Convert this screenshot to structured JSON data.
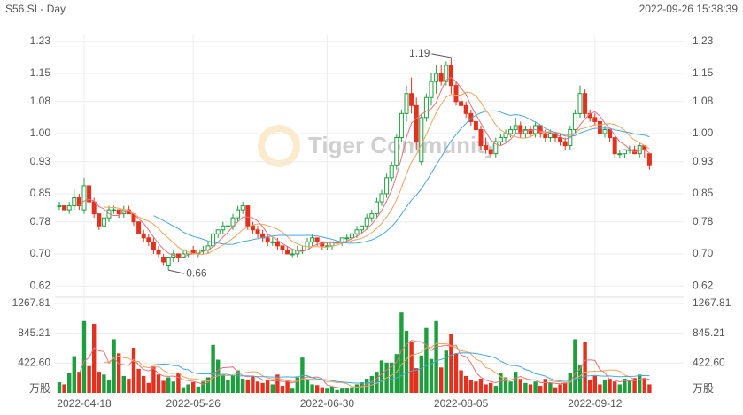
{
  "chart_data": {
    "type": "candlestick",
    "title": "S56.SI - Day",
    "timestamp": "2022-09-26 15:38:39",
    "watermark": "Tiger Community",
    "volume_unit": "万股",
    "up_color": "#1f9e3e",
    "down_color": "#e2321f",
    "categories": [
      null,
      null,
      null,
      null,
      null,
      "2022-04-18",
      null,
      null,
      null,
      null,
      null,
      null,
      null,
      null,
      null,
      null,
      null,
      null,
      null,
      null,
      null,
      null,
      null,
      null,
      null,
      null,
      null,
      "2022-05-26",
      null,
      null,
      null,
      null,
      null,
      null,
      null,
      null,
      null,
      null,
      null,
      null,
      null,
      null,
      null,
      null,
      null,
      null,
      null,
      null,
      null,
      null,
      null,
      null,
      null,
      null,
      "2022-06-30",
      null,
      null,
      null,
      null,
      null,
      null,
      null,
      null,
      null,
      null,
      null,
      null,
      null,
      null,
      null,
      null,
      null,
      null,
      null,
      null,
      null,
      null,
      null,
      null,
      null,
      null,
      "2022-08-05",
      null,
      null,
      null,
      null,
      null,
      null,
      null,
      null,
      null,
      null,
      null,
      null,
      null,
      null,
      null,
      null,
      null,
      null,
      null,
      null,
      null,
      null,
      null,
      null,
      null,
      null,
      "2022-09-12",
      null,
      null,
      null,
      null,
      null,
      null,
      null,
      null,
      null,
      null,
      null
    ],
    "open": [
      0.82,
      0.82,
      0.81,
      0.82,
      0.84,
      0.81,
      0.87,
      0.83,
      0.8,
      0.77,
      0.79,
      0.81,
      0.81,
      0.8,
      0.81,
      0.8,
      0.78,
      0.75,
      0.74,
      0.73,
      0.71,
      0.69,
      0.67,
      0.69,
      0.7,
      0.69,
      0.7,
      0.71,
      0.7,
      0.71,
      0.71,
      0.72,
      0.75,
      0.76,
      0.77,
      0.77,
      0.79,
      0.81,
      0.82,
      0.77,
      0.76,
      0.75,
      0.74,
      0.73,
      0.73,
      0.72,
      0.71,
      0.7,
      0.7,
      0.71,
      0.71,
      0.73,
      0.74,
      0.73,
      0.72,
      0.72,
      0.73,
      0.73,
      0.74,
      0.74,
      0.75,
      0.76,
      0.77,
      0.79,
      0.8,
      0.83,
      0.85,
      0.89,
      0.92,
      0.99,
      1.05,
      1.1,
      1.07,
      0.93,
      1.04,
      1.09,
      1.13,
      1.15,
      1.13,
      1.17,
      1.12,
      1.08,
      1.07,
      1.05,
      1.03,
      1.01,
      0.97,
      0.96,
      0.95,
      0.98,
      0.99,
      1.0,
      1.01,
      1.02,
      1.0,
      1.01,
      1.0,
      1.02,
      1.0,
      0.99,
      1.0,
      0.99,
      0.98,
      0.97,
      1.01,
      1.05,
      1.1,
      1.05,
      1.04,
      1.03,
      1.0,
      1.01,
      0.99,
      0.95,
      0.95,
      0.96,
      0.96,
      0.95,
      0.97,
      0.95
    ],
    "high": [
      0.83,
      0.82,
      0.83,
      0.86,
      0.85,
      0.89,
      0.87,
      0.84,
      0.8,
      0.8,
      0.82,
      0.82,
      0.81,
      0.82,
      0.82,
      0.8,
      0.78,
      0.76,
      0.75,
      0.74,
      0.72,
      0.7,
      0.69,
      0.71,
      0.7,
      0.71,
      0.71,
      0.72,
      0.71,
      0.72,
      0.73,
      0.76,
      0.76,
      0.78,
      0.78,
      0.8,
      0.82,
      0.83,
      0.82,
      0.78,
      0.77,
      0.76,
      0.75,
      0.74,
      0.74,
      0.72,
      0.72,
      0.71,
      0.72,
      0.72,
      0.74,
      0.75,
      0.74,
      0.73,
      0.73,
      0.73,
      0.73,
      0.74,
      0.75,
      0.75,
      0.77,
      0.77,
      0.8,
      0.81,
      0.84,
      0.86,
      0.9,
      0.93,
      1.0,
      1.06,
      1.12,
      1.14,
      1.09,
      1.05,
      1.1,
      1.15,
      1.17,
      1.17,
      1.18,
      1.19,
      1.13,
      1.1,
      1.08,
      1.06,
      1.04,
      1.02,
      0.99,
      0.97,
      0.99,
      1.0,
      1.01,
      1.02,
      1.04,
      1.03,
      1.02,
      1.02,
      1.03,
      1.02,
      1.01,
      1.01,
      1.0,
      1.0,
      0.99,
      1.02,
      1.06,
      1.12,
      1.11,
      1.06,
      1.05,
      1.04,
      1.02,
      1.01,
      0.99,
      0.96,
      0.96,
      0.97,
      0.97,
      0.98,
      0.97,
      0.95
    ],
    "low": [
      0.81,
      0.81,
      0.8,
      0.81,
      0.81,
      0.8,
      0.82,
      0.79,
      0.76,
      0.77,
      0.78,
      0.8,
      0.79,
      0.79,
      0.8,
      0.77,
      0.75,
      0.73,
      0.72,
      0.7,
      0.69,
      0.67,
      0.66,
      0.68,
      0.68,
      0.69,
      0.69,
      0.7,
      0.69,
      0.7,
      0.7,
      0.72,
      0.74,
      0.75,
      0.76,
      0.76,
      0.78,
      0.8,
      0.76,
      0.75,
      0.74,
      0.73,
      0.72,
      0.72,
      0.71,
      0.7,
      0.7,
      0.69,
      0.69,
      0.7,
      0.71,
      0.72,
      0.72,
      0.71,
      0.71,
      0.71,
      0.72,
      0.72,
      0.73,
      0.73,
      0.74,
      0.75,
      0.76,
      0.78,
      0.79,
      0.82,
      0.84,
      0.88,
      0.91,
      0.98,
      1.03,
      1.05,
      0.96,
      0.92,
      1.03,
      1.07,
      1.1,
      1.12,
      1.12,
      1.1,
      1.07,
      1.06,
      1.04,
      1.02,
      1.0,
      0.96,
      0.95,
      0.94,
      0.94,
      0.97,
      0.98,
      0.99,
      1.0,
      0.99,
      0.99,
      0.99,
      0.99,
      0.99,
      0.98,
      0.98,
      0.98,
      0.97,
      0.96,
      0.96,
      1.0,
      1.04,
      1.04,
      1.03,
      1.02,
      0.99,
      0.99,
      0.98,
      0.94,
      0.94,
      0.94,
      0.95,
      0.95,
      0.94,
      0.94,
      0.91
    ],
    "close": [
      0.82,
      0.81,
      0.82,
      0.84,
      0.82,
      0.87,
      0.83,
      0.8,
      0.77,
      0.79,
      0.81,
      0.81,
      0.8,
      0.81,
      0.8,
      0.78,
      0.75,
      0.74,
      0.73,
      0.71,
      0.7,
      0.68,
      0.69,
      0.7,
      0.69,
      0.7,
      0.71,
      0.7,
      0.71,
      0.71,
      0.72,
      0.75,
      0.76,
      0.77,
      0.77,
      0.79,
      0.81,
      0.82,
      0.77,
      0.76,
      0.75,
      0.74,
      0.73,
      0.73,
      0.72,
      0.71,
      0.7,
      0.7,
      0.71,
      0.71,
      0.73,
      0.74,
      0.73,
      0.72,
      0.72,
      0.73,
      0.73,
      0.74,
      0.74,
      0.75,
      0.76,
      0.77,
      0.79,
      0.8,
      0.83,
      0.85,
      0.89,
      0.92,
      0.99,
      1.05,
      1.1,
      1.07,
      0.98,
      1.04,
      1.09,
      1.13,
      1.15,
      1.13,
      1.17,
      1.12,
      1.08,
      1.07,
      1.05,
      1.03,
      1.01,
      0.97,
      0.96,
      0.95,
      0.98,
      0.99,
      1.0,
      1.01,
      1.02,
      1.0,
      1.01,
      1.0,
      1.02,
      1.0,
      0.99,
      1.0,
      0.99,
      0.98,
      0.97,
      1.01,
      1.05,
      1.1,
      1.05,
      1.04,
      1.03,
      1.0,
      1.01,
      0.99,
      0.95,
      0.95,
      0.96,
      0.96,
      0.95,
      0.97,
      0.96,
      0.92
    ],
    "volume": [
      150,
      120,
      280,
      520,
      300,
      1020,
      380,
      980,
      300,
      260,
      180,
      760,
      560,
      240,
      200,
      640,
      340,
      240,
      140,
      380,
      260,
      170,
      220,
      160,
      290,
      80,
      120,
      150,
      90,
      160,
      220,
      680,
      470,
      260,
      180,
      250,
      320,
      200,
      190,
      240,
      160,
      140,
      180,
      120,
      260,
      100,
      170,
      60,
      220,
      500,
      180,
      120,
      110,
      80,
      60,
      90,
      40,
      60,
      70,
      80,
      120,
      150,
      200,
      240,
      300,
      460,
      430,
      430,
      550,
      1140,
      880,
      720,
      350,
      530,
      920,
      480,
      1020,
      360,
      600,
      840,
      560,
      320,
      240,
      180,
      160,
      200,
      120,
      140,
      100,
      280,
      220,
      160,
      300,
      200,
      140,
      120,
      160,
      100,
      200,
      140,
      80,
      120,
      150,
      280,
      760,
      400,
      720,
      180,
      240,
      120,
      180,
      200,
      160,
      120,
      200,
      170,
      210,
      260,
      200,
      120
    ],
    "price_ma": [
      {
        "period": 5,
        "color": "#e8717a"
      },
      {
        "period": 10,
        "color": "#f2a35a"
      },
      {
        "period": 20,
        "color": "#4aa6dc"
      }
    ],
    "volume_ma": [
      {
        "period": 5,
        "color": "#e8717a"
      },
      {
        "period": 10,
        "color": "#f2a35a"
      },
      {
        "period": 20,
        "color": "#4aa6dc"
      }
    ],
    "annotations": [
      1.19,
      0.66
    ],
    "ylim": [
      0.605,
      1.245
    ],
    "yticks": [
      0.62,
      {
        "value": 0.7,
        "label": "0.70"
      },
      0.78,
      0.85,
      0.93,
      {
        "value": 1,
        "label": "1.00"
      },
      1.08,
      1.15,
      1.23
    ],
    "volume_ylim": [
      0,
      1267.81
    ],
    "volume_yticks": [
      {
        "value": 422.6,
        "label": "422.60"
      },
      845.21,
      1267.81
    ],
    "grid": true
  }
}
